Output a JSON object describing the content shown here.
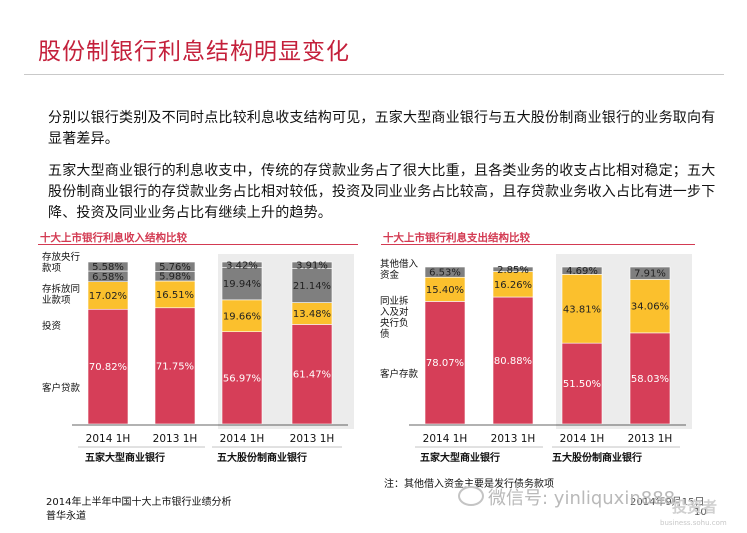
{
  "slide": {
    "title": "股份制银行利息结构明显变化",
    "paragraph1": "分别以银行类别及不同时点比较利息收支结构可见，五家大型商业银行与五大股份制商业银行的业务取向有显著差异。",
    "paragraph2": "五家大型商业银行的利息收支中，传统的存贷款业务占了很大比重，且各类业务的收支占比相对稳定；五大股份制商业银行的存贷款业务占比相对较低，投资及同业业务占比较高，且存贷款业务收入占比有进一步下降、投资及同业业务占比有继续上升的趋势。",
    "footer_source": "2014年上半年中国十大上市银行业绩分析",
    "footer_firm": "普华永道",
    "footer_date": "2014年9月15日",
    "page_number": "10",
    "watermark_wechat": "微信号: yinliquxin888",
    "watermark_logo": "投资者",
    "watermark_url": "business.sohu.com"
  },
  "colors": {
    "red": "#d63e58",
    "yellow": "#fbc02d",
    "gray": "#7f7f7f",
    "accent": "#c4203b"
  },
  "chart_data": [
    {
      "type": "bar",
      "stacked": true,
      "title": "十大上市银行利息收入结构比较",
      "categories": [
        "2014 1H",
        "2013 1H",
        "2014 1H",
        "2013 1H"
      ],
      "groups": [
        "五家大型商业银行",
        "五大股份制商业银行"
      ],
      "series": [
        {
          "name": "客户贷款",
          "values": [
            70.82,
            71.75,
            56.97,
            61.47
          ],
          "labels": [
            "70.82%",
            "71.75%",
            "56.97%",
            "61.47%"
          ]
        },
        {
          "name": "投资",
          "values": [
            17.02,
            16.51,
            19.66,
            13.48
          ],
          "labels": [
            "17.02%",
            "16.51%",
            "19.66%",
            "13.48%"
          ]
        },
        {
          "name": "存拆放同业款项",
          "values": [
            6.58,
            5.98,
            19.94,
            21.14
          ],
          "labels": [
            "6.58%",
            "5.98%",
            "19.94%",
            "21.14%"
          ]
        },
        {
          "name": "存放央行款项",
          "values": [
            5.58,
            5.76,
            3.42,
            3.91
          ],
          "labels": [
            "5.58%",
            "5.76%",
            "3.42%",
            "3.91%"
          ]
        }
      ],
      "ylim": [
        0,
        100
      ]
    },
    {
      "type": "bar",
      "stacked": true,
      "title": "十大上市银行利息支出结构比较",
      "categories": [
        "2014 1H",
        "2013 1H",
        "2014 1H",
        "2013 1H"
      ],
      "groups": [
        "五家大型商业银行",
        "五大股份制商业银行"
      ],
      "series": [
        {
          "name": "客户存款",
          "values": [
            78.07,
            80.88,
            51.5,
            58.03
          ],
          "labels": [
            "78.07%",
            "80.88%",
            "51.50%",
            "58.03%"
          ]
        },
        {
          "name": "同业拆入及对央行负债",
          "values": [
            15.4,
            16.26,
            43.81,
            34.06
          ],
          "labels": [
            "15.40%",
            "16.26%",
            "43.81%",
            "34.06%"
          ]
        },
        {
          "name": "其他借入资金",
          "values": [
            6.53,
            2.85,
            4.69,
            7.91
          ],
          "labels": [
            "6.53%",
            "2.85%",
            "4.69%",
            "7.91%"
          ]
        }
      ],
      "note": "注：其他借入资金主要是发行债务款项",
      "ylim": [
        0,
        100
      ]
    }
  ],
  "legend_labels": {
    "income": [
      "存放央行款项",
      "存拆放同业款项",
      "投资",
      "客户贷款"
    ],
    "expense": [
      "其他借入资金",
      "同业拆入及对央行负债",
      "客户存款"
    ]
  }
}
